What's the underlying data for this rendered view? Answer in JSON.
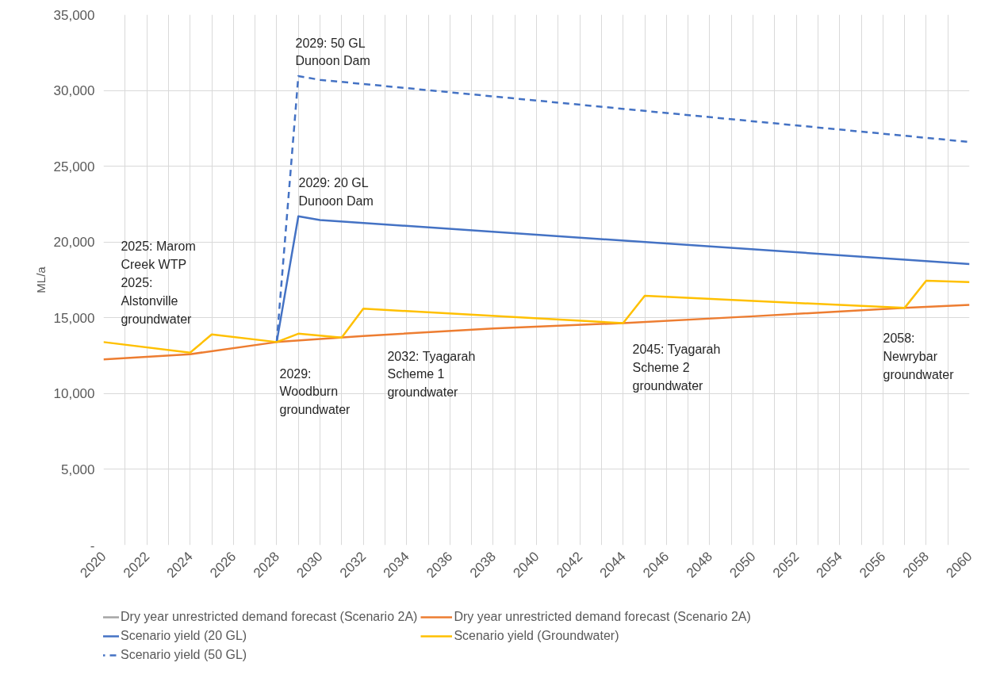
{
  "chart_data": {
    "type": "line",
    "ylabel": "ML/a",
    "xlim": [
      2020,
      2060
    ],
    "ylim": [
      0,
      35000
    ],
    "xticks": [
      2020,
      {
        "value": 2021,
        "label": null
      },
      2022,
      {
        "value": 2023,
        "label": null
      },
      2024,
      {
        "value": 2025,
        "label": null
      },
      2026,
      {
        "value": 2027,
        "label": null
      },
      2028,
      {
        "value": 2029,
        "label": null
      },
      2030,
      {
        "value": 2031,
        "label": null
      },
      2032,
      {
        "value": 2033,
        "label": null
      },
      2034,
      {
        "value": 2035,
        "label": null
      },
      2036,
      {
        "value": 2037,
        "label": null
      },
      2038,
      {
        "value": 2039,
        "label": null
      },
      2040,
      {
        "value": 2041,
        "label": null
      },
      2042,
      {
        "value": 2043,
        "label": null
      },
      2044,
      {
        "value": 2045,
        "label": null
      },
      2046,
      {
        "value": 2047,
        "label": null
      },
      2048,
      {
        "value": 2049,
        "label": null
      },
      2050,
      {
        "value": 2051,
        "label": null
      },
      2052,
      {
        "value": 2053,
        "label": null
      },
      2054,
      {
        "value": 2055,
        "label": null
      },
      2056,
      {
        "value": 2057,
        "label": null
      },
      2058,
      {
        "value": 2059,
        "label": null
      },
      2060
    ],
    "yticks": [
      {
        "value": 0,
        "label": "-"
      },
      {
        "value": 5000,
        "label": "5,000"
      },
      {
        "value": 10000,
        "label": "10,000"
      },
      {
        "value": 15000,
        "label": "15,000"
      },
      {
        "value": 20000,
        "label": "20,000"
      },
      {
        "value": 25000,
        "label": "25,000"
      },
      {
        "value": 30000,
        "label": "30,000"
      },
      {
        "value": 35000,
        "label": "35,000"
      }
    ],
    "grid": true,
    "legend": "bottom",
    "marker": "none",
    "series": [
      {
        "name": "Dry year unrestricted demand forecast (Scenario 2A)",
        "color": "#a5a5a5"
      },
      {
        "name": "Scenario yield (20 GL)",
        "color": "#4472c4",
        "x": [
          2028,
          2029,
          2030,
          2060
        ],
        "values": [
          13400,
          21700,
          21450,
          18550
        ]
      },
      {
        "name": "Scenario yield (50 GL)",
        "color": "#4472c4",
        "line_style": "dashed",
        "x": [
          2028,
          2029,
          2030,
          2060
        ],
        "values": [
          13400,
          30950,
          30700,
          26600
        ]
      },
      {
        "name": "Dry year unrestricted demand forecast (Scenario 2A)",
        "color": "#ed7d31",
        "x": [
          2020,
          2024,
          2028,
          2032,
          2038,
          2044,
          2050,
          2057,
          2060
        ],
        "values": [
          12250,
          12600,
          13400,
          13800,
          14300,
          14650,
          15100,
          15650,
          15850
        ]
      },
      {
        "name": "Scenario yield (Groundwater)",
        "color": "#ffc000",
        "x": [
          2020,
          2024,
          2025,
          2028,
          2029,
          2031,
          2032,
          2044,
          2045,
          2057,
          2058,
          2060
        ],
        "values": [
          13400,
          12700,
          13900,
          13400,
          13950,
          13700,
          15600,
          14650,
          16450,
          15650,
          17450,
          17350
        ]
      }
    ],
    "annotations": [
      "2029: 50 GL\nDunoon Dam",
      "2029: 20 GL\nDunoon Dam",
      "2025: Marom\nCreek WTP\n2025:\nAlstonville\ngroundwater",
      "2029:\nWoodburn\ngroundwater",
      "2032: Tyagarah\nScheme 1\ngroundwater",
      "2045: Tyagarah\nScheme 2\ngroundwater",
      "2058:\nNewrybar\ngroundwater"
    ]
  }
}
